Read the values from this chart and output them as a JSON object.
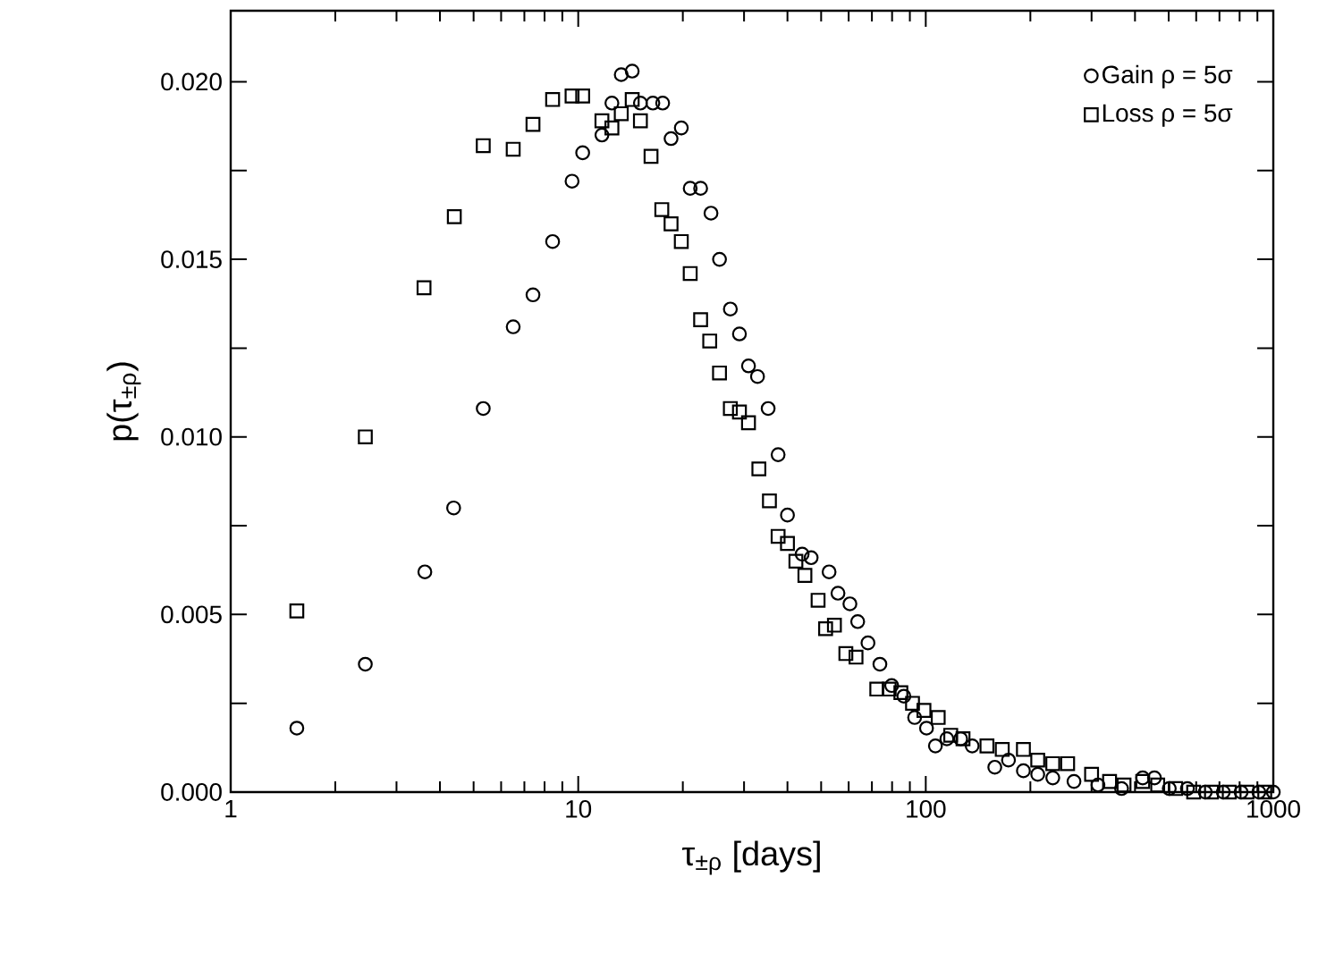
{
  "chart_data": {
    "type": "scatter",
    "xlabel": "τ$_{±ρ}$ [days]",
    "ylabel": "p(τ$_{±ρ}$)",
    "log": "x",
    "grid": false,
    "legend": "top right",
    "xlim": [
      1,
      1000
    ],
    "ylim": [
      0,
      0.022
    ],
    "xticks": [
      1,
      10,
      100,
      1000
    ],
    "yticks": [
      {
        "value": 0,
        "label": "0.000"
      },
      {
        "value": 0.0025,
        "label": null
      },
      {
        "value": 0.005,
        "label": "0.005"
      },
      {
        "value": 0.0075,
        "label": null
      },
      {
        "value": 0.01,
        "label": "0.010"
      },
      {
        "value": 0.0125,
        "label": null
      },
      {
        "value": 0.015,
        "label": "0.015"
      },
      {
        "value": 0.0175,
        "label": null
      },
      {
        "value": 0.02,
        "label": "0.020"
      }
    ],
    "series": [
      {
        "name": "Gain ρ = 5σ",
        "color": "#000000",
        "marker": "circle",
        "x": [
          1.55,
          2.44,
          3.62,
          4.38,
          5.33,
          6.5,
          7.41,
          8.44,
          9.6,
          10.3,
          11.7,
          12.5,
          13.3,
          14.3,
          15.1,
          16.4,
          17.5,
          18.5,
          19.8,
          21.0,
          22.5,
          24.1,
          25.5,
          27.4,
          29.1,
          30.9,
          32.8,
          35.2,
          37.6,
          40.0,
          44.1,
          46.8,
          52.7,
          55.9,
          60.5,
          63.7,
          68.2,
          73.8,
          79.8,
          86.5,
          92.9,
          100.5,
          106.6,
          115,
          126,
          136,
          158,
          173,
          191,
          210,
          232,
          267,
          313,
          366,
          421,
          455,
          502,
          566,
          637,
          718,
          808,
          909,
          1000
        ],
        "values": [
          0.0018,
          0.0036,
          0.0062,
          0.008,
          0.0108,
          0.0131,
          0.014,
          0.0155,
          0.0172,
          0.018,
          0.0185,
          0.0194,
          0.0202,
          0.0203,
          0.0194,
          0.0194,
          0.0194,
          0.0184,
          0.0187,
          0.017,
          0.017,
          0.0163,
          0.015,
          0.0136,
          0.0129,
          0.012,
          0.0117,
          0.0108,
          0.0095,
          0.0078,
          0.0067,
          0.0066,
          0.0062,
          0.0056,
          0.0053,
          0.0048,
          0.0042,
          0.0036,
          0.003,
          0.0027,
          0.0021,
          0.0018,
          0.0013,
          0.0015,
          0.0015,
          0.0013,
          0.0007,
          0.0009,
          0.0006,
          0.0005,
          0.0004,
          0.0003,
          0.0002,
          0.0001,
          0.0004,
          0.0004,
          0.0001,
          0.0001,
          0,
          0,
          0,
          0,
          0
        ]
      },
      {
        "name": "Loss ρ = 5σ",
        "color": "#000000",
        "marker": "square",
        "x": [
          1.55,
          2.44,
          3.6,
          4.4,
          5.33,
          6.5,
          7.41,
          8.44,
          9.6,
          10.3,
          11.7,
          12.5,
          13.3,
          14.3,
          15.1,
          16.2,
          17.4,
          18.5,
          19.8,
          21.0,
          22.5,
          23.9,
          25.5,
          27.4,
          29.1,
          30.9,
          33.1,
          35.5,
          37.6,
          40,
          42.3,
          44.9,
          49,
          51.5,
          54.6,
          58.9,
          63,
          72.3,
          78.5,
          84.8,
          91.6,
          98.8,
          108.6,
          118,
          128,
          150,
          166,
          191,
          210,
          232,
          256,
          300,
          338,
          372,
          421,
          465,
          524,
          590,
          664,
          747,
          840,
          945
        ],
        "values": [
          0.0051,
          0.01,
          0.0142,
          0.0162,
          0.0182,
          0.0181,
          0.0188,
          0.0195,
          0.0196,
          0.0196,
          0.0189,
          0.0187,
          0.0191,
          0.0195,
          0.0189,
          0.0179,
          0.0164,
          0.016,
          0.0155,
          0.0146,
          0.0133,
          0.0127,
          0.0118,
          0.0108,
          0.0107,
          0.0104,
          0.0091,
          0.0082,
          0.0072,
          0.007,
          0.0065,
          0.0061,
          0.0054,
          0.0046,
          0.0047,
          0.0039,
          0.0038,
          0.0029,
          0.0029,
          0.0028,
          0.0025,
          0.0023,
          0.0021,
          0.0016,
          0.0015,
          0.0013,
          0.0012,
          0.0012,
          0.0009,
          0.0008,
          0.0008,
          0.0005,
          0.0003,
          0.0002,
          0.0003,
          0.0002,
          0.0001,
          0,
          0,
          0,
          0,
          0
        ]
      }
    ]
  }
}
